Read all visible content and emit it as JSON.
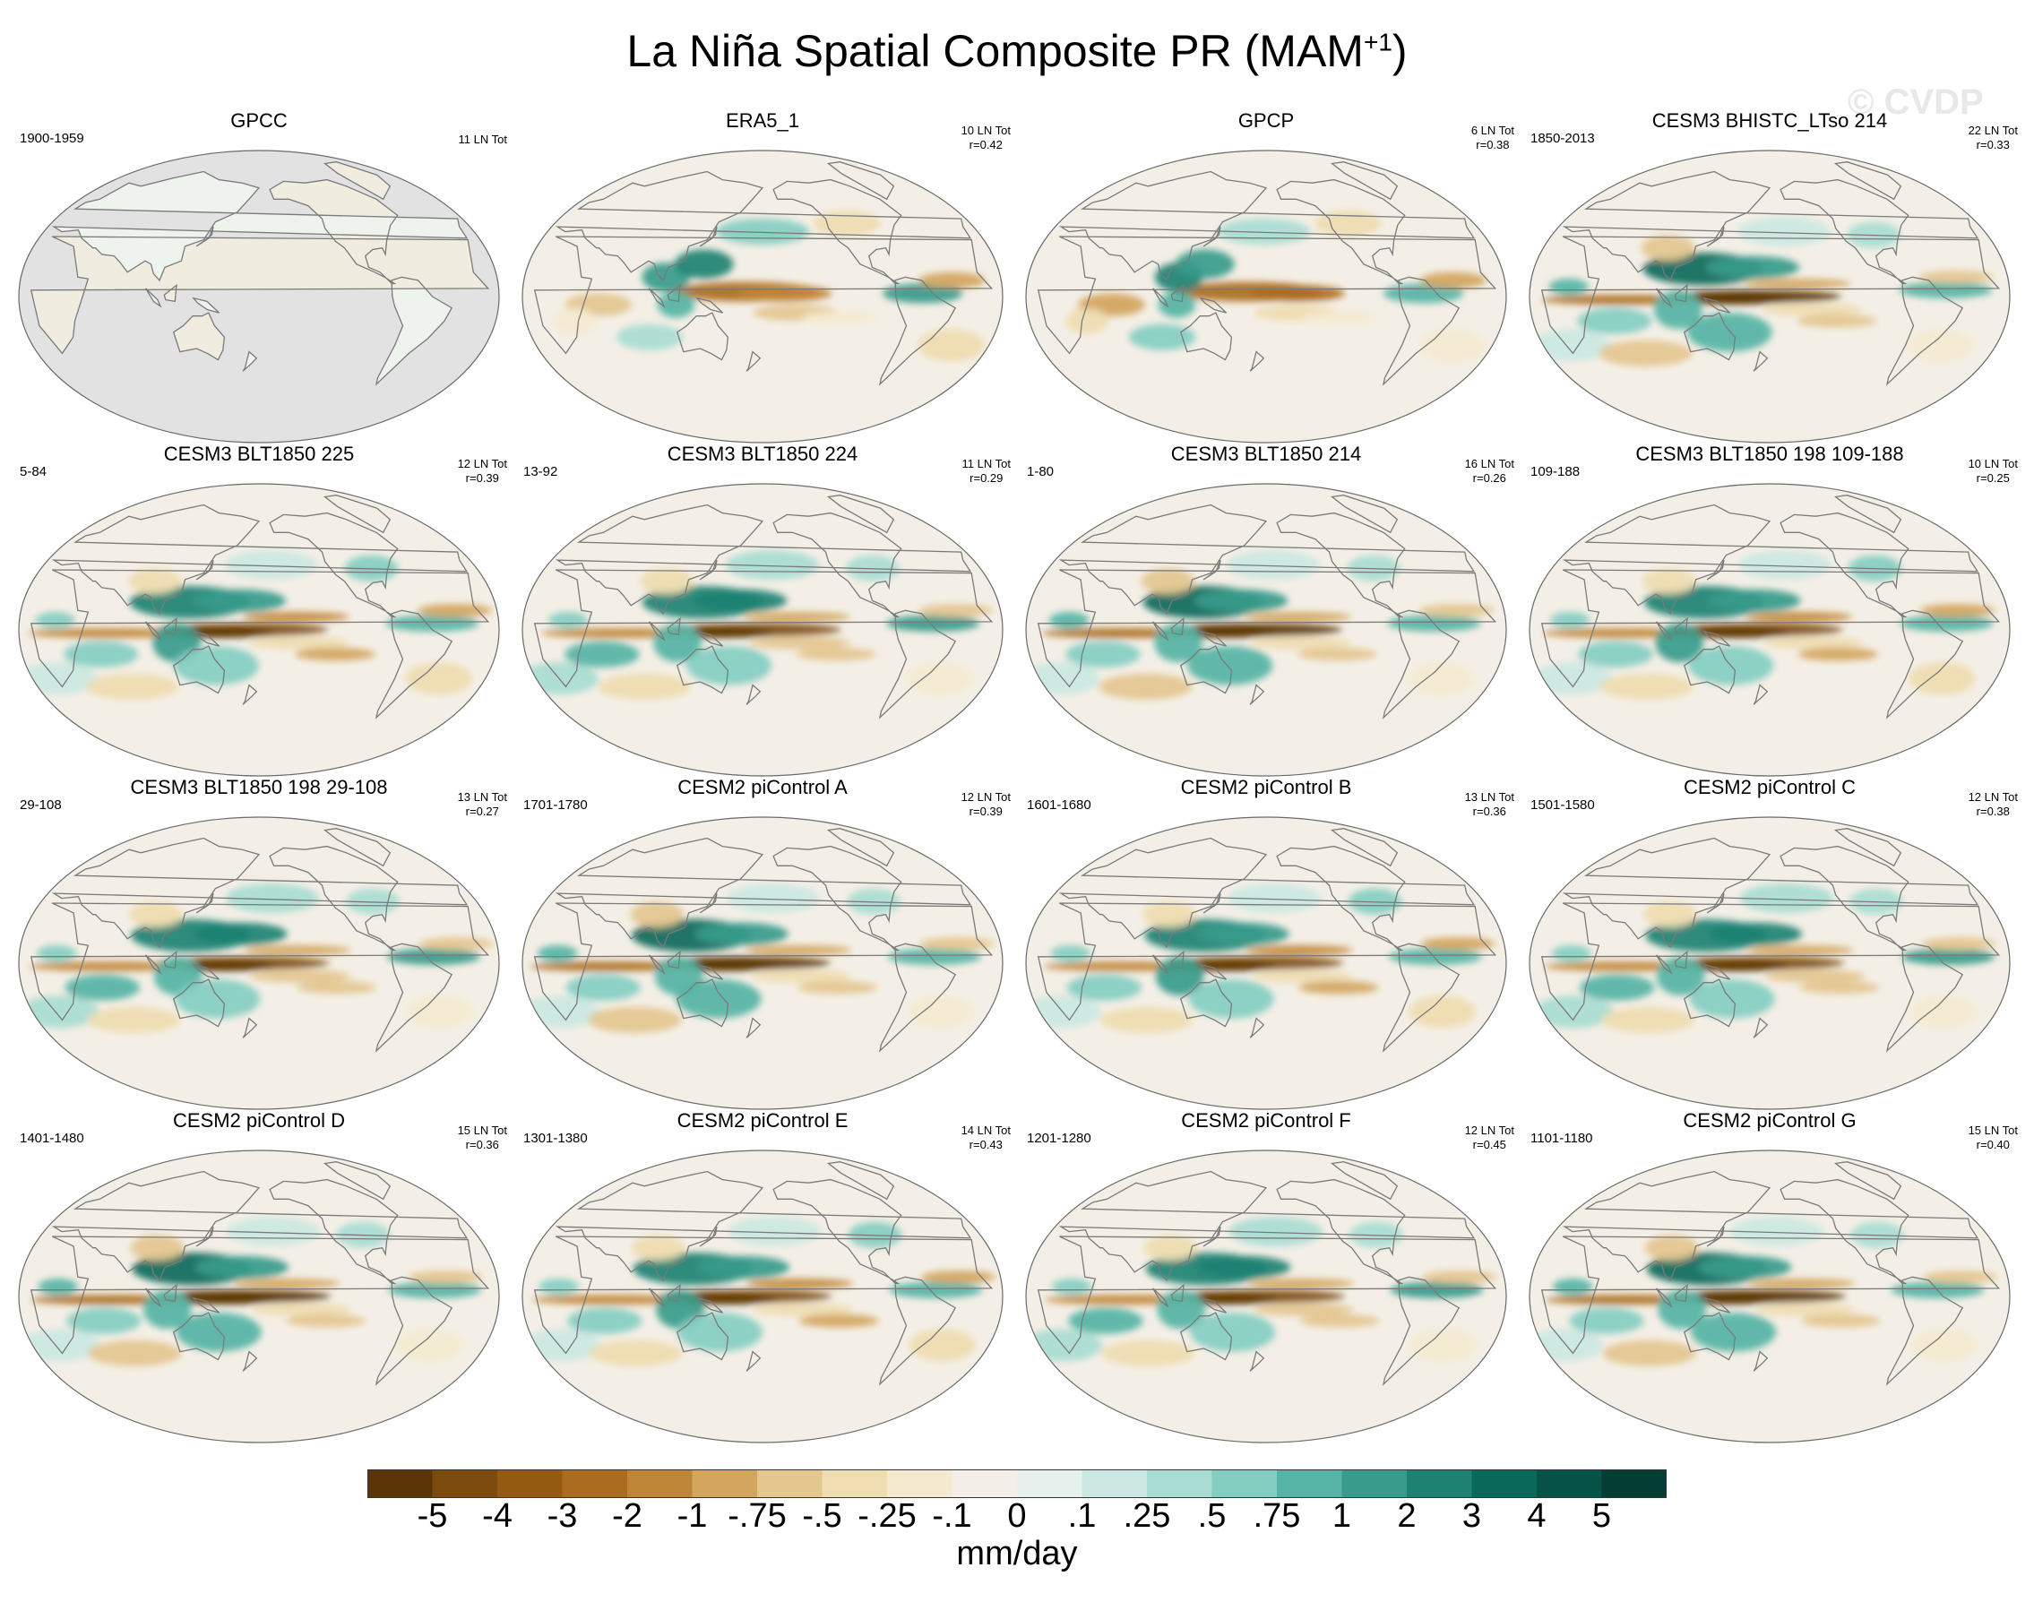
{
  "figure": {
    "title_main": "La Niña Spatial Composite PR (MAM",
    "title_sup": "+1",
    "title_close": ")",
    "watermark": "© CVDP"
  },
  "colors": {
    "ocean_base": "#f4efe6",
    "land_missing": "#e2e2e2",
    "coast": "#7a7a7a"
  },
  "panels": [
    {
      "title": "GPCC",
      "years": "1900-1959",
      "ln": "11 LN Tot",
      "r": "",
      "style": "land"
    },
    {
      "title": "ERA5_1",
      "years": "",
      "ln": "10 LN Tot",
      "r": "r=0.42",
      "style": "obs"
    },
    {
      "title": "GPCP",
      "years": "",
      "ln": "6 LN Tot",
      "r": "r=0.38",
      "style": "obs"
    },
    {
      "title": "CESM3 BHISTC_LTso 214",
      "years": "1850-2013",
      "ln": "22 LN Tot",
      "r": "r=0.33",
      "style": "model"
    },
    {
      "title": "CESM3 BLT1850 225",
      "years": "5-84",
      "ln": "12 LN Tot",
      "r": "r=0.39",
      "style": "model"
    },
    {
      "title": "CESM3 BLT1850 224",
      "years": "13-92",
      "ln": "11 LN Tot",
      "r": "r=0.29",
      "style": "model"
    },
    {
      "title": "CESM3 BLT1850 214",
      "years": "1-80",
      "ln": "16 LN Tot",
      "r": "r=0.26",
      "style": "model"
    },
    {
      "title": "CESM3 BLT1850 198 109-188",
      "years": "109-188",
      "ln": "10 LN Tot",
      "r": "r=0.25",
      "style": "model"
    },
    {
      "title": "CESM3 BLT1850 198 29-108",
      "years": "29-108",
      "ln": "13 LN Tot",
      "r": "r=0.27",
      "style": "model"
    },
    {
      "title": "CESM2 piControl A",
      "years": "1701-1780",
      "ln": "12 LN Tot",
      "r": "r=0.39",
      "style": "model"
    },
    {
      "title": "CESM2 piControl B",
      "years": "1601-1680",
      "ln": "13 LN Tot",
      "r": "r=0.36",
      "style": "model"
    },
    {
      "title": "CESM2 piControl C",
      "years": "1501-1580",
      "ln": "12 LN Tot",
      "r": "r=0.38",
      "style": "model"
    },
    {
      "title": "CESM2 piControl D",
      "years": "1401-1480",
      "ln": "15 LN Tot",
      "r": "r=0.36",
      "style": "model"
    },
    {
      "title": "CESM2 piControl E",
      "years": "1301-1380",
      "ln": "14 LN Tot",
      "r": "r=0.43",
      "style": "model"
    },
    {
      "title": "CESM2 piControl F",
      "years": "1201-1280",
      "ln": "12 LN Tot",
      "r": "r=0.45",
      "style": "model"
    },
    {
      "title": "CESM2 piControl G",
      "years": "1101-1180",
      "ln": "15 LN Tot",
      "r": "r=0.40",
      "style": "model"
    }
  ],
  "colorbar": {
    "colors": [
      "#5a3506",
      "#7b4a0c",
      "#955a12",
      "#ab6c20",
      "#c08637",
      "#d3a55d",
      "#e4c68f",
      "#efdcb0",
      "#f5ead0",
      "#f3efe8",
      "#e6f1ee",
      "#cbe8e2",
      "#a8dcd3",
      "#83cdc1",
      "#55b4a5",
      "#389b8b",
      "#1e8273",
      "#096a5c",
      "#055247",
      "#043d33"
    ],
    "labels": [
      "-5",
      "-4",
      "-3",
      "-2",
      "-1",
      "-.75",
      "-.5",
      "-.25",
      "-.1",
      "0",
      ".1",
      ".25",
      ".5",
      ".75",
      "1",
      "2",
      "3",
      "4",
      "5"
    ],
    "units": "mm/day"
  }
}
